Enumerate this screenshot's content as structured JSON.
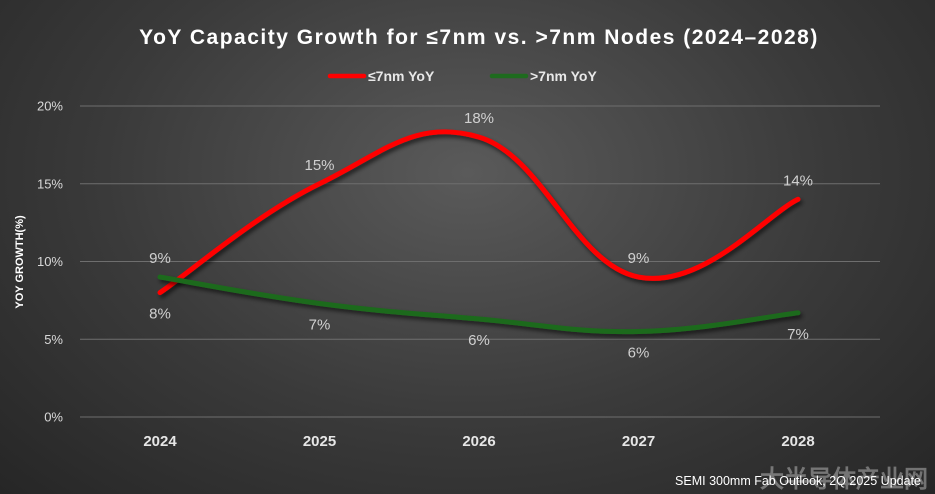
{
  "chart_data": {
    "type": "line",
    "title": "YoY Capacity Growth for ≤7nm vs. >7nm Nodes (2024–2028)",
    "ylabel": "YOY GROWTH(%)",
    "xlabel": "",
    "categories": [
      "2024",
      "2025",
      "2026",
      "2027",
      "2028"
    ],
    "ylim": [
      0,
      20
    ],
    "yticks": [
      "0%",
      "5%",
      "10%",
      "15%",
      "20%"
    ],
    "ytick_values": [
      0,
      5,
      10,
      15,
      20
    ],
    "grid": true,
    "legend_position": "top-center",
    "series": [
      {
        "name": "≤7nm YoY",
        "color": "#ff0000",
        "values": [
          8,
          15,
          18,
          9,
          14
        ],
        "labels": [
          "8%",
          "15%",
          "18%",
          "9%",
          "14%"
        ],
        "label_side": [
          "below",
          "above",
          "above",
          "above",
          "above"
        ]
      },
      {
        "name": ">7nm YoY",
        "color": "#1e6b1e",
        "values": [
          9,
          7.3,
          6.3,
          5.5,
          6.7
        ],
        "labels": [
          "9%",
          "7%",
          "6%",
          "6%",
          "7%"
        ],
        "label_side": [
          "above",
          "below",
          "below",
          "below",
          "below"
        ]
      }
    ]
  },
  "source": "SEMI 300mm Fab Outlook, 2Q 2025 Update",
  "watermark": "大半导体产业网"
}
